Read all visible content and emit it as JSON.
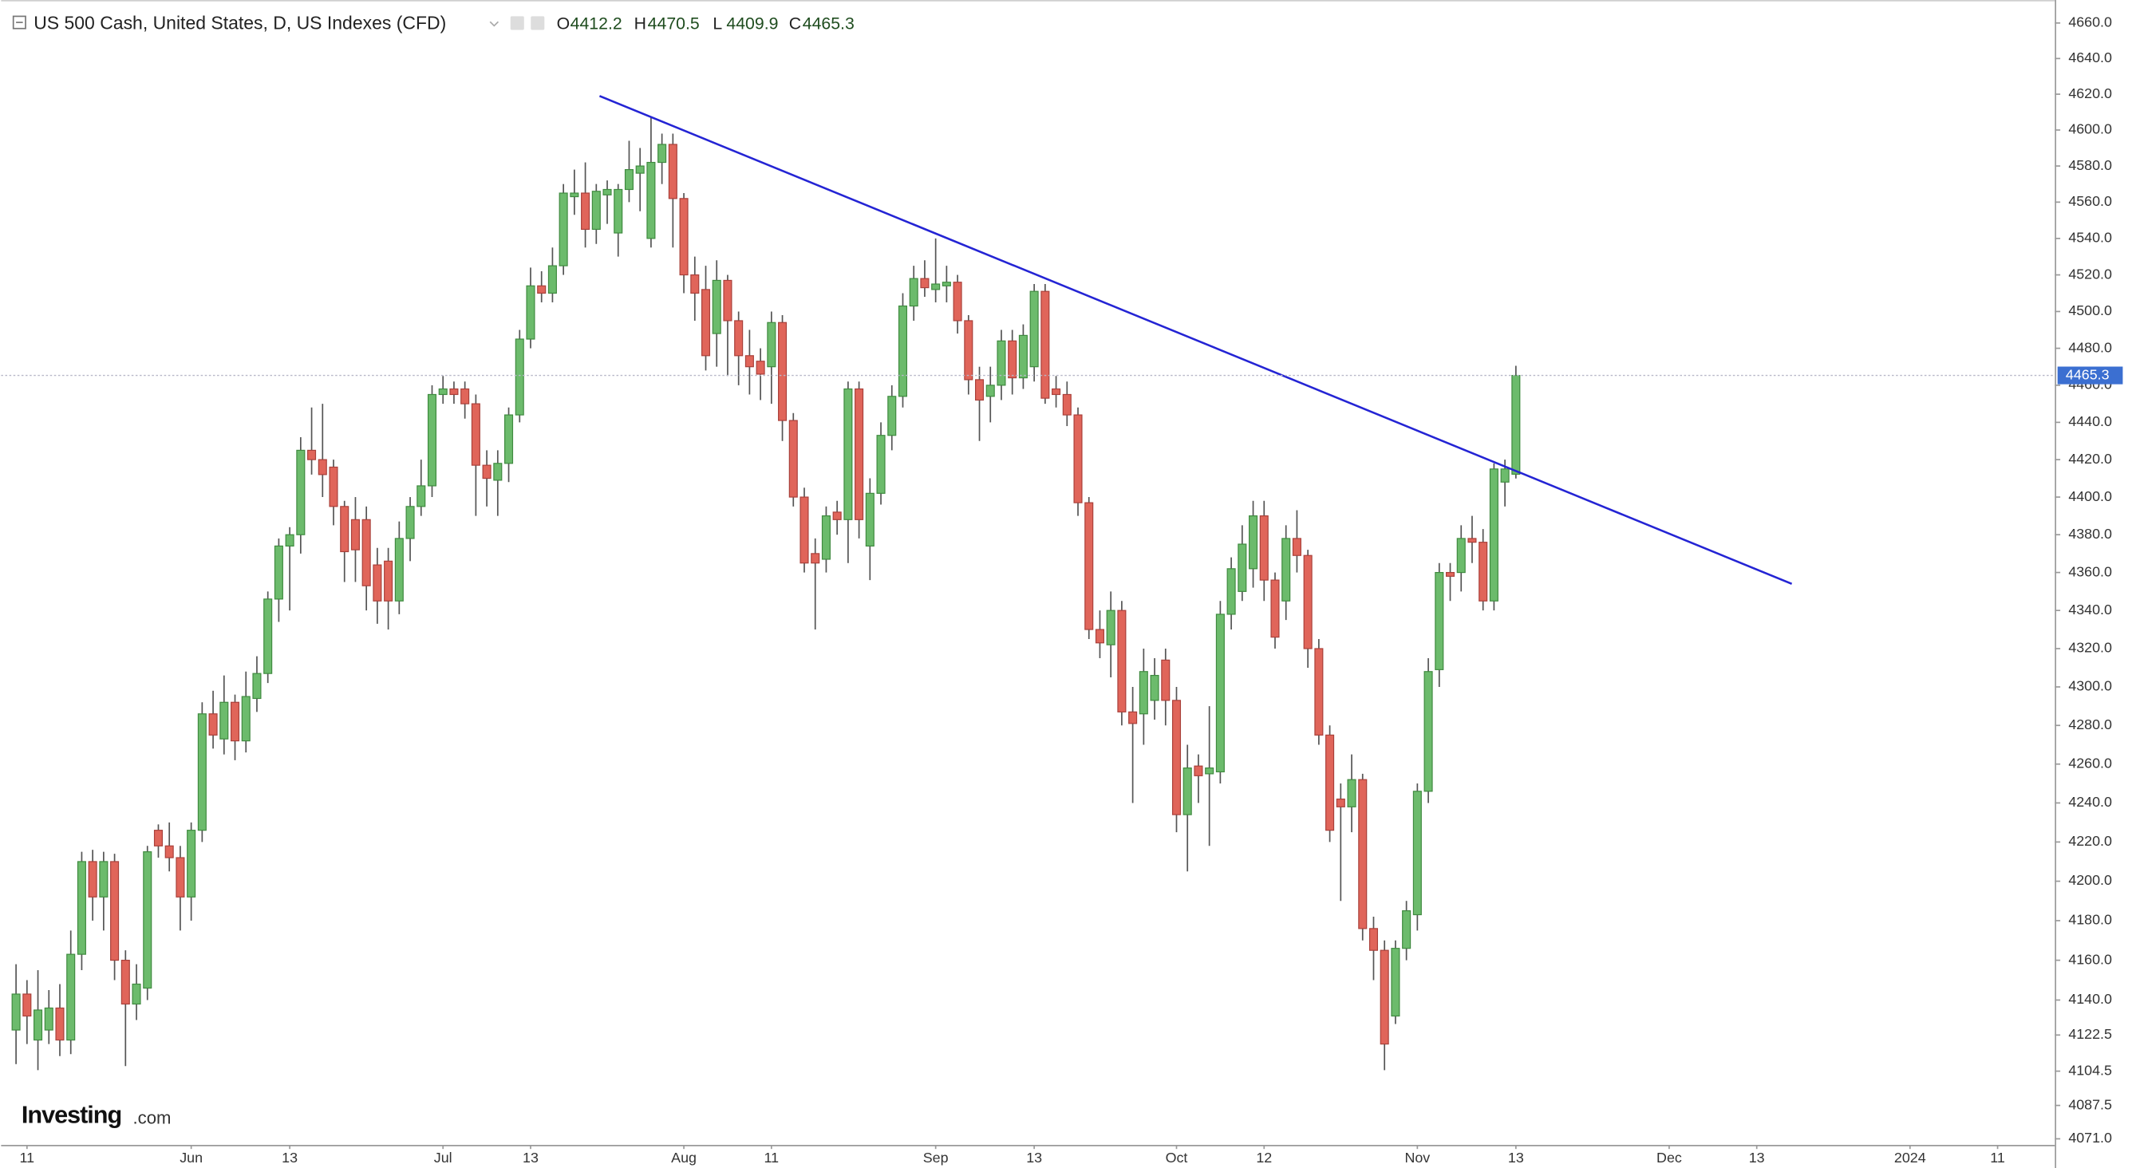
{
  "chart_data": {
    "type": "candlestick",
    "title": "US 500 Cash, United States, D, US Indexes (CFD)",
    "ohlc_labels": [
      "O",
      "H",
      "L",
      "C"
    ],
    "watermark": "Investing",
    "watermark_suffix": ".com",
    "log_scale": true,
    "grid": false,
    "up_color": "#6cbb6c",
    "down_color": "#e0655a",
    "ylim": [
      4068,
      4673
    ],
    "yticks": [
      {
        "value": 4660,
        "label": "4660.0"
      },
      {
        "value": 4640,
        "label": "4640.0"
      },
      {
        "value": 4620,
        "label": "4620.0"
      },
      {
        "value": 4600,
        "label": "4600.0"
      },
      {
        "value": 4580,
        "label": "4580.0"
      },
      {
        "value": 4560,
        "label": "4560.0"
      },
      {
        "value": 4540,
        "label": "4540.0"
      },
      {
        "value": 4520,
        "label": "4520.0"
      },
      {
        "value": 4500,
        "label": "4500.0"
      },
      {
        "value": 4480,
        "label": "4480.0"
      },
      {
        "value": 4460,
        "label": "4460.0"
      },
      {
        "value": 4440,
        "label": "4440.0"
      },
      {
        "value": 4420,
        "label": "4420.0"
      },
      {
        "value": 4400,
        "label": "4400.0"
      },
      {
        "value": 4380,
        "label": "4380.0"
      },
      {
        "value": 4360,
        "label": "4360.0"
      },
      {
        "value": 4340,
        "label": "4340.0"
      },
      {
        "value": 4320,
        "label": "4320.0"
      },
      {
        "value": 4300,
        "label": "4300.0"
      },
      {
        "value": 4280,
        "label": "4280.0"
      },
      {
        "value": 4260,
        "label": "4260.0"
      },
      {
        "value": 4240,
        "label": "4240.0"
      },
      {
        "value": 4220,
        "label": "4220.0"
      },
      {
        "value": 4200,
        "label": "4200.0"
      },
      {
        "value": 4180,
        "label": "4180.0"
      },
      {
        "value": 4160,
        "label": "4160.0"
      },
      {
        "value": 4140,
        "label": "4140.0"
      },
      4122.5,
      4104.5,
      4087.5,
      {
        "value": 4071,
        "label": "4071.0"
      }
    ],
    "categories": [
      null,
      "11",
      null,
      null,
      null,
      null,
      null,
      null,
      null,
      null,
      null,
      null,
      null,
      null,
      null,
      null,
      "Jun",
      null,
      null,
      null,
      null,
      null,
      null,
      null,
      null,
      "13",
      null,
      null,
      null,
      null,
      null,
      null,
      null,
      null,
      null,
      null,
      null,
      null,
      null,
      "Jul",
      null,
      null,
      null,
      null,
      null,
      null,
      null,
      "13",
      null,
      null,
      null,
      null,
      null,
      null,
      null,
      null,
      null,
      null,
      null,
      null,
      null,
      "Aug",
      null,
      null,
      null,
      null,
      null,
      null,
      null,
      "11",
      null,
      null,
      null,
      null,
      null,
      null,
      null,
      null,
      null,
      null,
      null,
      null,
      null,
      null,
      "Sep",
      null,
      null,
      null,
      null,
      null,
      null,
      null,
      null,
      "13",
      null,
      null,
      null,
      null,
      null,
      null,
      null,
      null,
      null,
      null,
      null,
      null,
      "Oct",
      null,
      null,
      null,
      null,
      null,
      null,
      null,
      "12",
      null,
      null,
      null,
      null,
      null,
      null,
      null,
      null,
      null,
      null,
      null,
      null,
      null,
      "Nov",
      null,
      null,
      null,
      null,
      null,
      null,
      null,
      null,
      "13",
      null,
      null,
      null,
      null,
      null,
      null,
      null,
      null,
      null,
      null,
      null,
      null,
      null,
      "Dec",
      null,
      null,
      null,
      null,
      null,
      null,
      null,
      "13",
      null,
      null,
      null,
      null,
      null,
      null,
      null,
      null,
      null,
      null,
      null,
      null,
      null,
      "2024",
      null,
      null,
      null,
      null,
      null,
      null,
      null,
      "11",
      null,
      null,
      null
    ],
    "open": [
      4125,
      4143,
      4120,
      4125,
      4136,
      4120,
      4163,
      4210,
      4192,
      4210,
      4160,
      4138,
      4146,
      4226,
      4218,
      4212,
      4192,
      4226,
      4286,
      4273,
      4292,
      4272,
      4294,
      4307,
      4346,
      4374,
      4380,
      4425,
      4420,
      4416,
      4395,
      4388,
      4388,
      4364,
      4366,
      4345,
      4378,
      4395,
      4406,
      4455,
      4458,
      4458,
      4450,
      4417,
      4409,
      4418,
      4444,
      4485,
      4514,
      4510,
      4525,
      4563,
      4565,
      4545,
      4564,
      4543,
      4567,
      4576,
      4540,
      4582,
      4592,
      4562,
      4520,
      4512,
      4488,
      4517,
      4495,
      4476,
      4473,
      4470,
      4494,
      4441,
      4400,
      4370,
      4367,
      4392,
      4388,
      4458,
      4374,
      4402,
      4433,
      4454,
      4503,
      4518,
      4512,
      4514,
      4516,
      4495,
      4463,
      4454,
      4460,
      4484,
      4464,
      4470,
      4511,
      4458,
      4455,
      4444,
      4397,
      4330,
      4322,
      4340,
      4287,
      4286,
      4293,
      4314,
      4293,
      4234,
      4259,
      4255,
      4256,
      4338,
      4350,
      4362,
      4390,
      4356,
      4345,
      4378,
      4369,
      4320,
      4275,
      4242,
      4238,
      4252,
      4176,
      4165,
      4132,
      4166,
      4183,
      4246,
      4309,
      4360,
      4360,
      4378,
      4376,
      4345,
      4408,
      4412.2,
      null,
      null,
      null,
      null,
      null,
      null,
      null,
      null,
      null,
      null,
      null,
      null,
      null,
      null,
      null,
      null,
      null,
      null,
      null,
      null,
      null,
      null,
      null,
      null,
      null,
      null,
      null,
      null,
      null,
      null,
      null,
      null,
      null,
      null,
      null,
      null,
      null,
      null,
      null,
      null,
      null,
      null,
      null,
      null,
      null,
      null,
      null
    ],
    "high": [
      4158,
      4150,
      4155,
      4145,
      4148,
      4175,
      4215,
      4216,
      4215,
      4214,
      4165,
      4158,
      4218,
      4229,
      4230,
      4218,
      4230,
      4292,
      4298,
      4306,
      4296,
      4308,
      4316,
      4350,
      4378,
      4384,
      4432,
      4448,
      4450,
      4420,
      4398,
      4400,
      4395,
      4373,
      4373,
      4387,
      4400,
      4420,
      4460,
      4465,
      4462,
      4462,
      4455,
      4425,
      4425,
      4448,
      4490,
      4524,
      4522,
      4535,
      4570,
      4578,
      4582,
      4570,
      4572,
      4570,
      4594,
      4590,
      4607,
      4598,
      4598,
      4565,
      4530,
      4525,
      4528,
      4520,
      4500,
      4490,
      4480,
      4500,
      4498,
      4445,
      4405,
      4378,
      4395,
      4398,
      4462,
      4462,
      4410,
      4440,
      4460,
      4510,
      4525,
      4528,
      4540,
      4525,
      4520,
      4498,
      4470,
      4470,
      4490,
      4490,
      4493,
      4515,
      4515,
      4465,
      4462,
      4448,
      4400,
      4340,
      4350,
      4345,
      4300,
      4320,
      4315,
      4320,
      4300,
      4270,
      4265,
      4290,
      4345,
      4368,
      4385,
      4398,
      4398,
      4360,
      4385,
      4393,
      4372,
      4325,
      4280,
      4250,
      4265,
      4255,
      4182,
      4170,
      4170,
      4190,
      4250,
      4315,
      4365,
      4365,
      4385,
      4390,
      4383,
      4418,
      4420,
      4470.5,
      null,
      null,
      null,
      null,
      null,
      null,
      null,
      null,
      null,
      null,
      null,
      null,
      null,
      null,
      null,
      null,
      null,
      null,
      null,
      null,
      null,
      null,
      null,
      null,
      null,
      null,
      null,
      null,
      null,
      null,
      null,
      null,
      null,
      null,
      null,
      null,
      null,
      null,
      null,
      null,
      null,
      null,
      null,
      null,
      null,
      null,
      null
    ],
    "low": [
      4108,
      4118,
      4105,
      4118,
      4112,
      4113,
      4155,
      4180,
      4175,
      4150,
      4107,
      4130,
      4140,
      4212,
      4205,
      4175,
      4180,
      4220,
      4268,
      4265,
      4262,
      4266,
      4287,
      4302,
      4334,
      4340,
      4370,
      4412,
      4400,
      4385,
      4355,
      4355,
      4340,
      4333,
      4330,
      4338,
      4366,
      4390,
      4400,
      4450,
      4450,
      4442,
      4390,
      4395,
      4390,
      4408,
      4440,
      4480,
      4505,
      4505,
      4520,
      4553,
      4535,
      4537,
      4548,
      4530,
      4560,
      4555,
      4535,
      4570,
      4535,
      4510,
      4495,
      4468,
      4470,
      4465,
      4460,
      4455,
      4452,
      4450,
      4430,
      4395,
      4360,
      4330,
      4360,
      4380,
      4365,
      4378,
      4356,
      4396,
      4425,
      4448,
      4495,
      4508,
      4505,
      4505,
      4488,
      4455,
      4430,
      4440,
      4452,
      4455,
      4458,
      4462,
      4450,
      4448,
      4438,
      4390,
      4325,
      4315,
      4305,
      4280,
      4240,
      4270,
      4283,
      4280,
      4225,
      4205,
      4240,
      4218,
      4250,
      4330,
      4345,
      4352,
      4345,
      4320,
      4335,
      4360,
      4310,
      4270,
      4220,
      4190,
      4225,
      4170,
      4150,
      4105,
      4128,
      4160,
      4175,
      4240,
      4300,
      4345,
      4350,
      4365,
      4340,
      4340,
      4395,
      4409.9,
      null,
      null,
      null,
      null,
      null,
      null,
      null,
      null,
      null,
      null,
      null,
      null,
      null,
      null,
      null,
      null,
      null,
      null,
      null,
      null,
      null,
      null,
      null,
      null,
      null,
      null,
      null,
      null,
      null,
      null,
      null,
      null,
      null,
      null,
      null,
      null,
      null,
      null,
      null,
      null,
      null,
      null,
      null,
      null,
      null,
      null,
      null
    ],
    "close": [
      4143,
      4132,
      4135,
      4136,
      4120,
      4163,
      4210,
      4192,
      4210,
      4160,
      4138,
      4148,
      4215,
      4218,
      4212,
      4192,
      4226,
      4286,
      4275,
      4292,
      4272,
      4295,
      4307,
      4346,
      4374,
      4380,
      4425,
      4420,
      4412,
      4395,
      4371,
      4372,
      4353,
      4345,
      4345,
      4378,
      4395,
      4406,
      4455,
      4458,
      4455,
      4450,
      4417,
      4410,
      4418,
      4444,
      4485,
      4514,
      4510,
      4525,
      4565,
      4565,
      4545,
      4566,
      4567,
      4567,
      4578,
      4580,
      4582,
      4592,
      4562,
      4520,
      4510,
      4476,
      4517,
      4495,
      4476,
      4470,
      4466,
      4494,
      4441,
      4400,
      4365,
      4365,
      4390,
      4388,
      4458,
      4388,
      4402,
      4433,
      4454,
      4503,
      4518,
      4513,
      4515,
      4516,
      4495,
      4463,
      4452,
      4460,
      4484,
      4464,
      4487,
      4511,
      4453,
      4455,
      4444,
      4397,
      4330,
      4323,
      4340,
      4287,
      4281,
      4308,
      4306,
      4293,
      4234,
      4258,
      4254,
      4258,
      4338,
      4362,
      4375,
      4390,
      4356,
      4326,
      4378,
      4369,
      4320,
      4275,
      4226,
      4238,
      4252,
      4176,
      4165,
      4118,
      4166,
      4185,
      4246,
      4308,
      4360,
      4358,
      4378,
      4376,
      4345,
      4415,
      4415,
      4465.3,
      null,
      null,
      null,
      null,
      null,
      null,
      null,
      null,
      null,
      null,
      null,
      null,
      null,
      null,
      null,
      null,
      null,
      null,
      null,
      null,
      null,
      null,
      null,
      null,
      null,
      null,
      null,
      null,
      null,
      null,
      null,
      null,
      null,
      null,
      null,
      null,
      null,
      null,
      null,
      null,
      null,
      null,
      null,
      null,
      null,
      null,
      null
    ],
    "trendline": {
      "x": [
        53.3,
        162.2
      ],
      "values": [
        4619,
        4354
      ],
      "color": "#2424d4"
    }
  }
}
